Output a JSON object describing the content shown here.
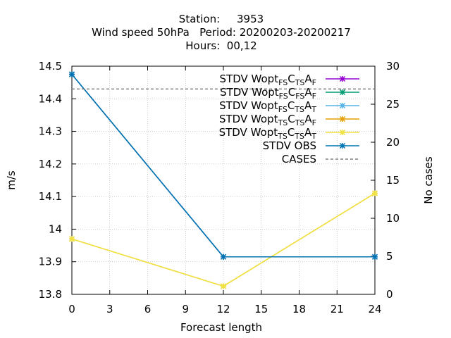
{
  "chart_data": {
    "type": "line",
    "title_lines": [
      "Station:     3953",
      "Wind speed 50hPa   Period: 20200203-20200217",
      "Hours:  00,12"
    ],
    "xlabel": "Forecast length",
    "ylabel": "m/s",
    "y2label": "No cases",
    "xlim": [
      0,
      24
    ],
    "ylim": [
      13.8,
      14.5
    ],
    "y2lim": [
      0,
      30
    ],
    "x_ticks": [
      "0",
      "3",
      "6",
      "9",
      "12",
      "15",
      "18",
      "21",
      "24"
    ],
    "y_ticks": [
      "13.8",
      "13.9",
      "14",
      "14.1",
      "14.2",
      "14.3",
      "14.4",
      "14.5"
    ],
    "y2_ticks": [
      "0",
      "5",
      "10",
      "15",
      "20",
      "25",
      "30"
    ],
    "grid": true,
    "legend_position": "top-right",
    "series": [
      {
        "name": "STDV Wopt_FS C_TS A_F",
        "legend": [
          [
            "STDV Wopt",
            ""
          ],
          [
            "FS",
            "sub"
          ],
          [
            "C",
            ""
          ],
          [
            "TS",
            "sub"
          ],
          [
            "A",
            ""
          ],
          [
            "F",
            "sub"
          ]
        ],
        "color": "#9400d3",
        "axis": "y",
        "x": [
          0,
          12,
          24
        ],
        "y": [
          14.475,
          13.915,
          13.915
        ]
      },
      {
        "name": "STDV Wopt_FS C_FS A_F",
        "legend": [
          [
            "STDV Wopt",
            ""
          ],
          [
            "FS",
            "sub"
          ],
          [
            "C",
            ""
          ],
          [
            "FS",
            "sub"
          ],
          [
            "A",
            ""
          ],
          [
            "F",
            "sub"
          ]
        ],
        "color": "#009e73",
        "axis": "y",
        "x": [
          0,
          12,
          24
        ],
        "y": [
          14.475,
          13.915,
          13.915
        ]
      },
      {
        "name": "STDV Wopt_FS C_TS A_T",
        "legend": [
          [
            "STDV Wopt",
            ""
          ],
          [
            "FS",
            "sub"
          ],
          [
            "C",
            ""
          ],
          [
            "TS",
            "sub"
          ],
          [
            "A",
            ""
          ],
          [
            "T",
            "sub"
          ]
        ],
        "color": "#56b4e9",
        "axis": "y",
        "x": [
          0,
          12,
          24
        ],
        "y": [
          14.475,
          13.915,
          13.915
        ]
      },
      {
        "name": "STDV Wopt_TS C_TS A_F",
        "legend": [
          [
            "STDV Wopt",
            ""
          ],
          [
            "TS",
            "sub"
          ],
          [
            "C",
            ""
          ],
          [
            "TS",
            "sub"
          ],
          [
            "A",
            ""
          ],
          [
            "F",
            "sub"
          ]
        ],
        "color": "#e69f00",
        "axis": "y",
        "x": [
          0,
          12,
          24
        ],
        "y": [
          13.97,
          13.825,
          14.11
        ]
      },
      {
        "name": "STDV Wopt_TS C_TS A_T",
        "legend": [
          [
            "STDV Wopt",
            ""
          ],
          [
            "TS",
            "sub"
          ],
          [
            "C",
            ""
          ],
          [
            "TS",
            "sub"
          ],
          [
            "A",
            ""
          ],
          [
            "T",
            "sub"
          ]
        ],
        "color": "#f0e442",
        "axis": "y",
        "x": [
          0,
          12,
          24
        ],
        "y": [
          13.97,
          13.825,
          14.11
        ]
      },
      {
        "name": "STDV OBS",
        "legend": [
          [
            "STDV OBS",
            ""
          ]
        ],
        "color": "#0072b2",
        "axis": "y",
        "x": [
          0,
          12,
          24
        ],
        "y": [
          14.475,
          13.915,
          13.915
        ]
      },
      {
        "name": "CASES",
        "legend": [
          [
            "CASES",
            ""
          ]
        ],
        "color": "#808080",
        "axis": "y2",
        "dashed": true,
        "x": [
          0,
          24
        ],
        "y": [
          27,
          27
        ]
      }
    ]
  }
}
